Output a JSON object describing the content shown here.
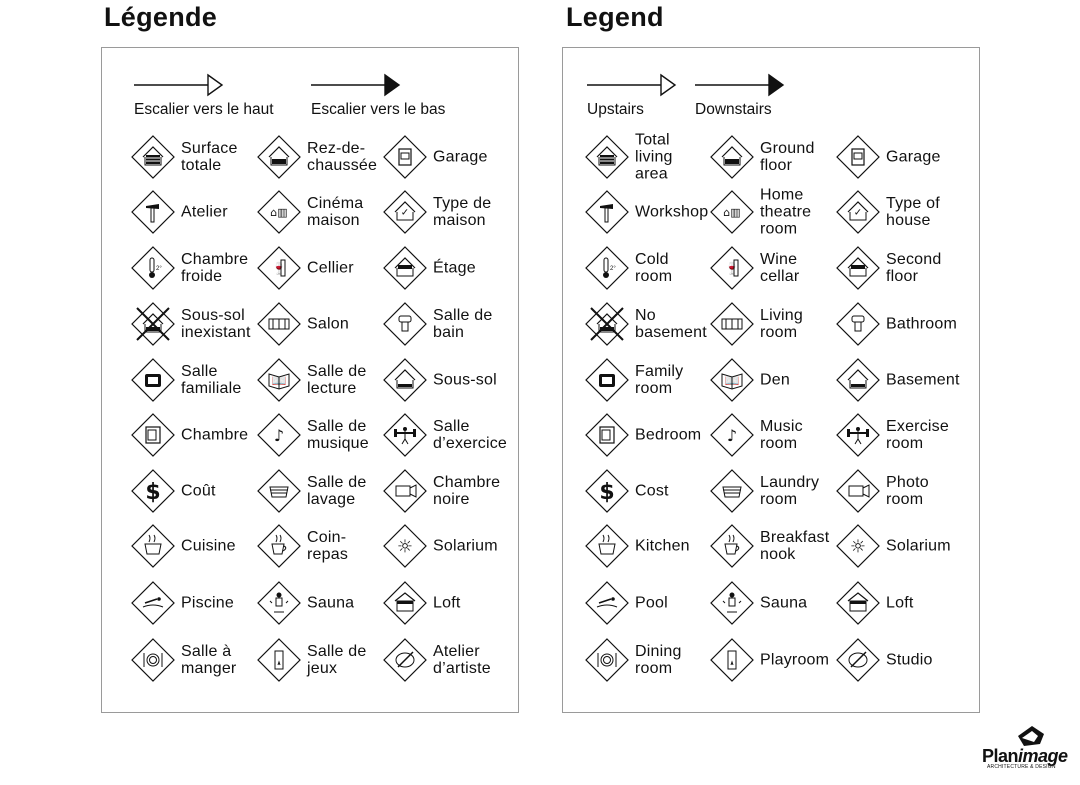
{
  "panels": [
    {
      "title": "Légende",
      "stairs_up": "Escalier vers le haut",
      "stairs_down": "Escalier vers le bas",
      "items": [
        "Surface\ntotale",
        "Rez-de-\nchaussée",
        "Garage",
        "Atelier",
        "Cinéma\nmaison",
        "Type de\nmaison",
        "Chambre\nfroide",
        "Cellier",
        "Étage",
        "Sous-sol\ninexistant",
        "Salon",
        "Salle de\nbain",
        "Salle\nfamiliale",
        "Salle de\nlecture",
        "Sous-sol",
        "Chambre",
        "Salle de\nmusique",
        "Salle\nd’exercice",
        "Coût",
        "Salle de\nlavage",
        "Chambre\nnoire",
        "Cuisine",
        "Coin-\nrepas",
        "Solarium",
        "Piscine",
        "Sauna",
        "Loft",
        "Salle à\nmanger",
        "Salle de\njeux",
        "Atelier\nd’artiste"
      ]
    },
    {
      "title": "Legend",
      "stairs_up": "Upstairs",
      "stairs_down": "Downstairs",
      "items": [
        "Total\nliving\narea",
        "Ground\nfloor",
        "Garage",
        "Workshop",
        "Home\ntheatre\nroom",
        "Type of\nhouse",
        "Cold\nroom",
        "Wine\ncellar",
        "Second\nfloor",
        "No\nbasement",
        "Living\nroom",
        "Bathroom",
        "Family\nroom",
        "Den",
        "Basement",
        "Bedroom",
        "Music\nroom",
        "Exercise\nroom",
        "Cost",
        "Laundry\nroom",
        "Photo\nroom",
        "Kitchen",
        "Breakfast\nnook",
        "Solarium",
        "Pool",
        "Sauna",
        "Loft",
        "Dining\nroom",
        "Playroom",
        "Studio"
      ]
    }
  ],
  "icons": [
    "total-area-icon",
    "ground-floor-icon",
    "garage-icon",
    "workshop-hammer-icon",
    "home-theatre-icon",
    "house-type-check-icon",
    "cold-room-thermometer-icon",
    "wine-cellar-icon",
    "second-floor-icon",
    "no-basement-icon",
    "living-room-sofa-icon",
    "bathroom-toilet-icon",
    "family-room-tv-icon",
    "den-book-icon",
    "basement-icon",
    "bedroom-icon",
    "music-note-icon",
    "exercise-weights-icon",
    "cost-dollar-icon",
    "laundry-icon",
    "photo-camera-icon",
    "kitchen-pot-icon",
    "breakfast-cup-icon",
    "solarium-sun-icon",
    "pool-swimmer-icon",
    "sauna-icon",
    "loft-icon",
    "dining-plate-icon",
    "playroom-icon",
    "studio-palette-icon"
  ],
  "logo": {
    "brand": "PlanImage",
    "tagline": "ARCHITECTURE & DESIGN"
  }
}
